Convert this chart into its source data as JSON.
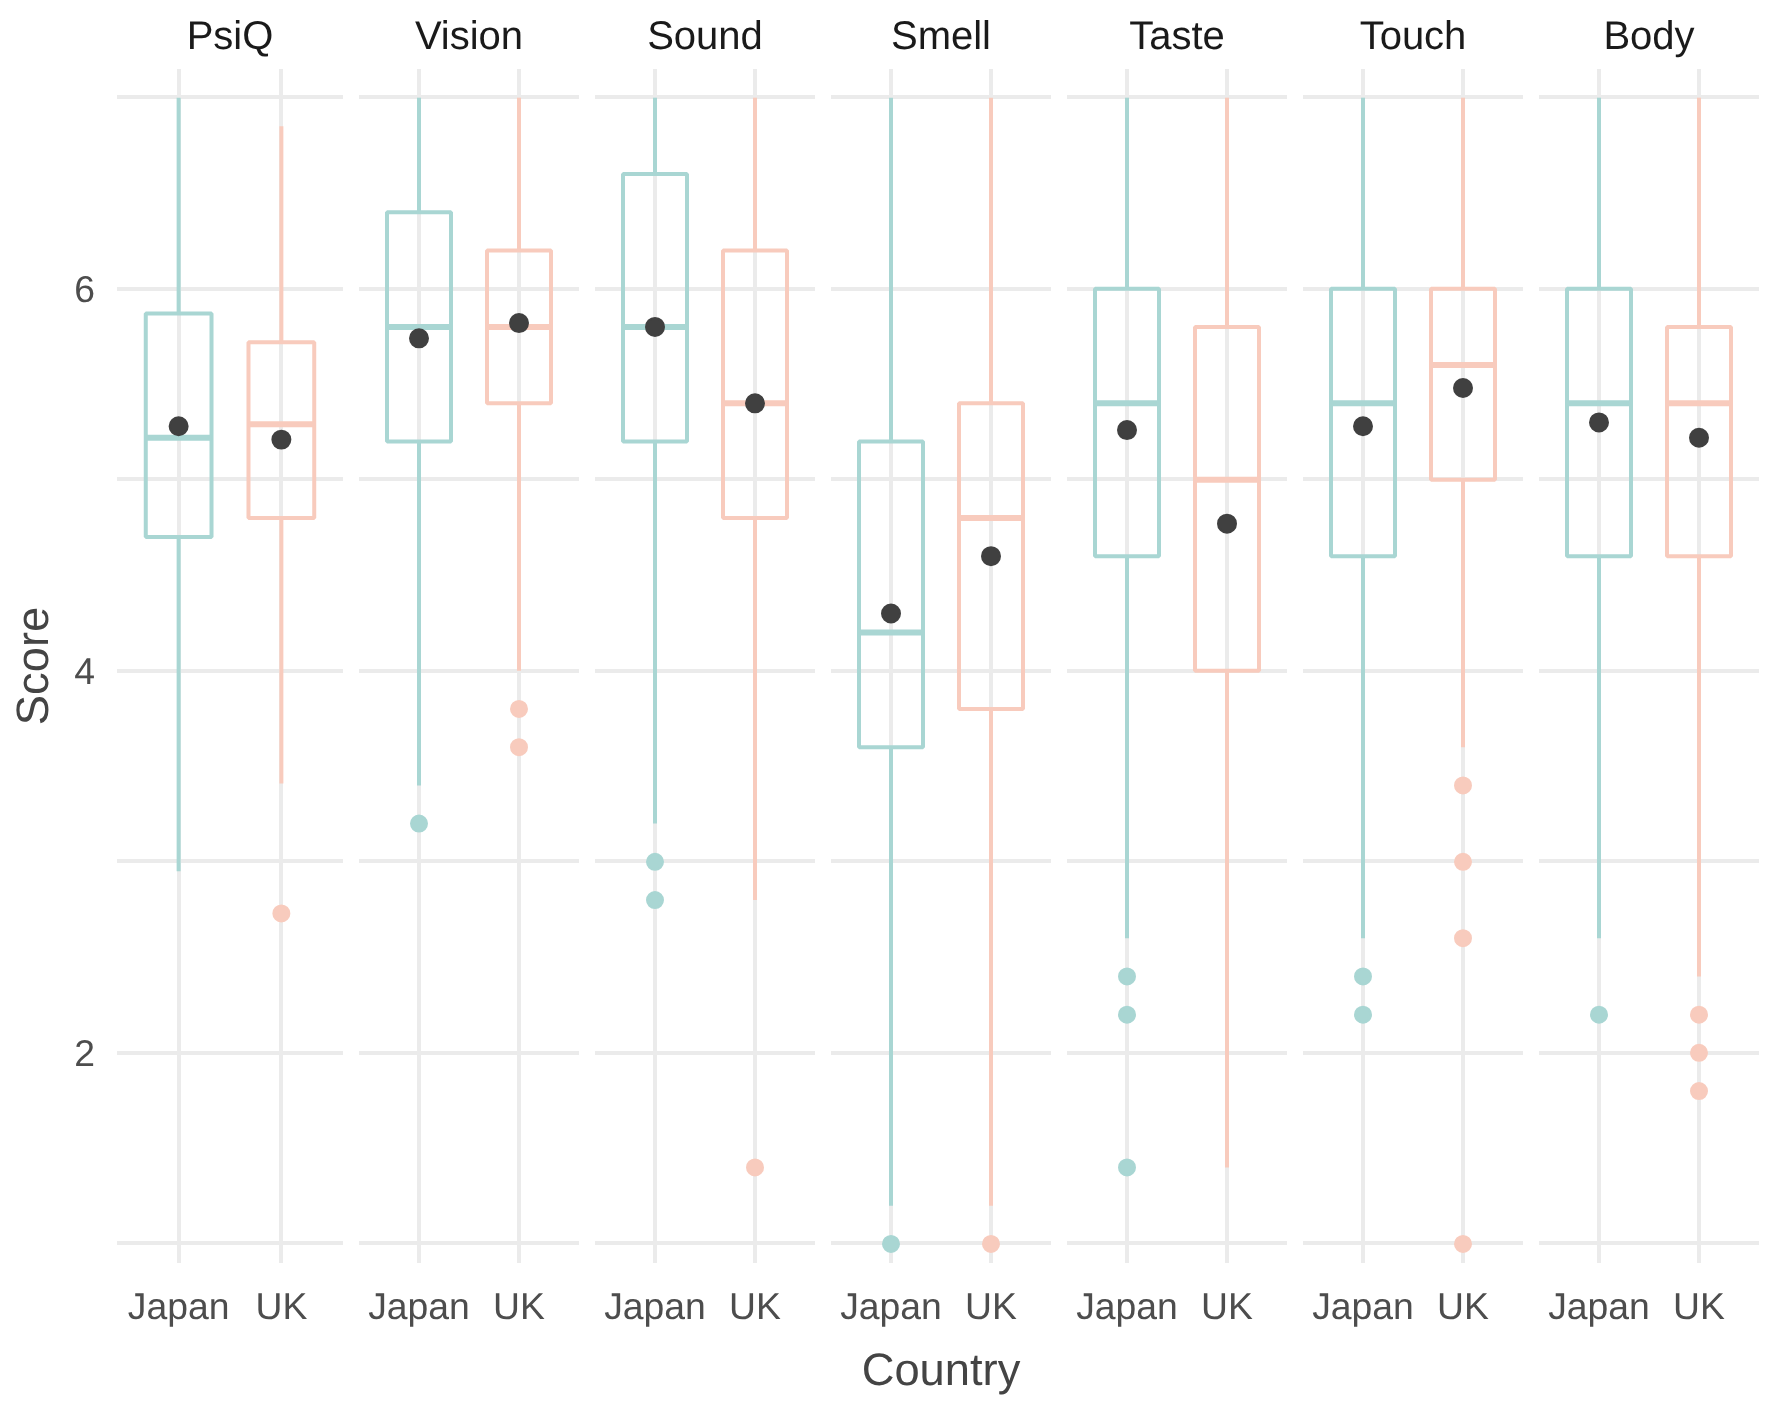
{
  "chart_data": [
    {
      "type": "box",
      "title": "PsiQ",
      "ylabel": "Score",
      "categories": [
        "Japan",
        "UK"
      ],
      "colors": [
        "#a9d6d3",
        "#f8cbbd"
      ],
      "ylim": [
        0.9,
        7.15
      ],
      "yticks": [
        {
          "value": 1,
          "label": null
        },
        2,
        {
          "value": 3,
          "label": null
        },
        4,
        {
          "value": 5,
          "label": null
        },
        6,
        {
          "value": 7,
          "label": null
        }
      ],
      "grid": true,
      "boxes": [
        {
          "low": 2.95,
          "q1": 4.7,
          "median": 5.22,
          "q3": 5.87,
          "high": 7.0,
          "mean": 5.28
        },
        {
          "low": 3.41,
          "q1": 4.8,
          "median": 5.29,
          "q3": 5.72,
          "high": 6.85,
          "mean": 5.21,
          "outliers": [
            2.73
          ]
        }
      ]
    },
    {
      "type": "box",
      "title": "Vision",
      "categories": [
        "Japan",
        "UK"
      ],
      "colors": [
        "#a9d6d3",
        "#f8cbbd"
      ],
      "ylim": [
        0.9,
        7.15
      ],
      "yticks": [
        {
          "value": 1,
          "label": null
        },
        2,
        {
          "value": 3,
          "label": null
        },
        4,
        {
          "value": 5,
          "label": null
        },
        6,
        {
          "value": 7,
          "label": null
        }
      ],
      "grid": true,
      "tick_labels": "x",
      "boxes": [
        {
          "low": 3.4,
          "q1": 5.2,
          "median": 5.8,
          "q3": 6.4,
          "high": 7.0,
          "mean": 5.74,
          "outliers": [
            3.2
          ]
        },
        {
          "low": 4.0,
          "q1": 5.4,
          "median": 5.8,
          "q3": 6.2,
          "high": 7.0,
          "mean": 5.82,
          "outliers": [
            3.8,
            3.6
          ]
        }
      ]
    },
    {
      "type": "box",
      "title": "Sound",
      "categories": [
        "Japan",
        "UK"
      ],
      "colors": [
        "#a9d6d3",
        "#f8cbbd"
      ],
      "ylim": [
        0.9,
        7.15
      ],
      "yticks": [
        {
          "value": 1,
          "label": null
        },
        2,
        {
          "value": 3,
          "label": null
        },
        4,
        {
          "value": 5,
          "label": null
        },
        6,
        {
          "value": 7,
          "label": null
        }
      ],
      "grid": true,
      "tick_labels": "x",
      "boxes": [
        {
          "low": 3.2,
          "q1": 5.2,
          "median": 5.8,
          "q3": 6.6,
          "high": 7.0,
          "mean": 5.8,
          "outliers": [
            3.0,
            2.8
          ]
        },
        {
          "low": 2.8,
          "q1": 4.8,
          "median": 5.4,
          "q3": 6.2,
          "high": 7.0,
          "mean": 5.4,
          "outliers": [
            1.4
          ]
        }
      ]
    },
    {
      "type": "box",
      "title": "Smell",
      "xlabel": "Country",
      "categories": [
        "Japan",
        "UK"
      ],
      "colors": [
        "#a9d6d3",
        "#f8cbbd"
      ],
      "ylim": [
        0.9,
        7.15
      ],
      "yticks": [
        {
          "value": 1,
          "label": null
        },
        2,
        {
          "value": 3,
          "label": null
        },
        4,
        {
          "value": 5,
          "label": null
        },
        6,
        {
          "value": 7,
          "label": null
        }
      ],
      "grid": true,
      "tick_labels": "x",
      "boxes": [
        {
          "low": 1.2,
          "q1": 3.6,
          "median": 4.2,
          "q3": 5.2,
          "high": 7.0,
          "mean": 4.3,
          "outliers": [
            1.0
          ]
        },
        {
          "low": 1.2,
          "q1": 3.8,
          "median": 4.8,
          "q3": 5.4,
          "high": 7.0,
          "mean": 4.6,
          "outliers": [
            1.0
          ]
        }
      ]
    },
    {
      "type": "box",
      "title": "Taste",
      "categories": [
        "Japan",
        "UK"
      ],
      "colors": [
        "#a9d6d3",
        "#f8cbbd"
      ],
      "ylim": [
        0.9,
        7.15
      ],
      "yticks": [
        {
          "value": 1,
          "label": null
        },
        2,
        {
          "value": 3,
          "label": null
        },
        4,
        {
          "value": 5,
          "label": null
        },
        6,
        {
          "value": 7,
          "label": null
        }
      ],
      "grid": true,
      "tick_labels": "x",
      "boxes": [
        {
          "low": 2.6,
          "q1": 4.6,
          "median": 5.4,
          "q3": 6.0,
          "high": 7.0,
          "mean": 5.26,
          "outliers": [
            2.4,
            2.2,
            1.4
          ]
        },
        {
          "low": 1.4,
          "q1": 4.0,
          "median": 5.0,
          "q3": 5.8,
          "high": 7.0,
          "mean": 4.77
        }
      ]
    },
    {
      "type": "box",
      "title": "Touch",
      "categories": [
        "Japan",
        "UK"
      ],
      "colors": [
        "#a9d6d3",
        "#f8cbbd"
      ],
      "ylim": [
        0.9,
        7.15
      ],
      "yticks": [
        {
          "value": 1,
          "label": null
        },
        2,
        {
          "value": 3,
          "label": null
        },
        4,
        {
          "value": 5,
          "label": null
        },
        6,
        {
          "value": 7,
          "label": null
        }
      ],
      "grid": true,
      "tick_labels": "x",
      "boxes": [
        {
          "low": 2.6,
          "q1": 4.6,
          "median": 5.4,
          "q3": 6.0,
          "high": 7.0,
          "mean": 5.28,
          "outliers": [
            2.4,
            2.2
          ]
        },
        {
          "low": 3.6,
          "q1": 5.0,
          "median": 5.6,
          "q3": 6.0,
          "high": 7.0,
          "mean": 5.48,
          "outliers": [
            3.4,
            3.0,
            2.6,
            1.0
          ]
        }
      ]
    },
    {
      "type": "box",
      "title": "Body",
      "categories": [
        "Japan",
        "UK"
      ],
      "colors": [
        "#a9d6d3",
        "#f8cbbd"
      ],
      "ylim": [
        0.9,
        7.15
      ],
      "yticks": [
        {
          "value": 1,
          "label": null
        },
        2,
        {
          "value": 3,
          "label": null
        },
        4,
        {
          "value": 5,
          "label": null
        },
        6,
        {
          "value": 7,
          "label": null
        }
      ],
      "grid": true,
      "tick_labels": "x",
      "boxes": [
        {
          "low": 2.6,
          "q1": 4.6,
          "median": 5.4,
          "q3": 6.0,
          "high": 7.0,
          "mean": 5.3,
          "outliers": [
            2.2
          ]
        },
        {
          "low": 2.4,
          "q1": 4.6,
          "median": 5.4,
          "q3": 5.8,
          "high": 7.0,
          "mean": 5.22,
          "outliers": [
            2.2,
            2.0,
            1.8
          ]
        }
      ]
    }
  ]
}
